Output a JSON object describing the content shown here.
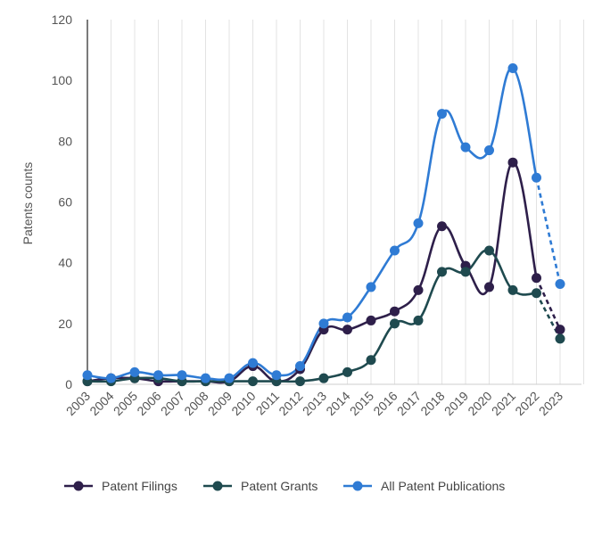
{
  "chart_data": {
    "type": "line",
    "title": "",
    "xlabel": "",
    "ylabel": "Patents counts",
    "ylim": [
      0,
      120
    ],
    "yticks": [
      0,
      20,
      40,
      60,
      80,
      100,
      120
    ],
    "categories": [
      "2003",
      "2004",
      "2005",
      "2006",
      "2007",
      "2008",
      "2009",
      "2010",
      "2011",
      "2012",
      "2013",
      "2014",
      "2015",
      "2016",
      "2017",
      "2018",
      "2019",
      "2020",
      "2021",
      "2022",
      "2023"
    ],
    "grid": "vertical",
    "legend_position": "bottom",
    "projected_segment": [
      "2022",
      "2023"
    ],
    "series": [
      {
        "name": "Patent Filings",
        "color": "#2e1f4a",
        "values": [
          1,
          2,
          2,
          1,
          1,
          1,
          1,
          6,
          1,
          5,
          18,
          18,
          21,
          24,
          31,
          52,
          39,
          32,
          73,
          35,
          18
        ]
      },
      {
        "name": "Patent Grants",
        "color": "#1f4a4f",
        "values": [
          1,
          1,
          2,
          2,
          1,
          1,
          1,
          1,
          1,
          1,
          2,
          4,
          8,
          20,
          21,
          37,
          37,
          44,
          31,
          30,
          15
        ]
      },
      {
        "name": "All Patent Publications",
        "color": "#2f7bd4",
        "values": [
          3,
          2,
          4,
          3,
          3,
          2,
          2,
          7,
          3,
          6,
          20,
          22,
          32,
          44,
          53,
          89,
          78,
          77,
          104,
          68,
          33
        ]
      }
    ]
  }
}
